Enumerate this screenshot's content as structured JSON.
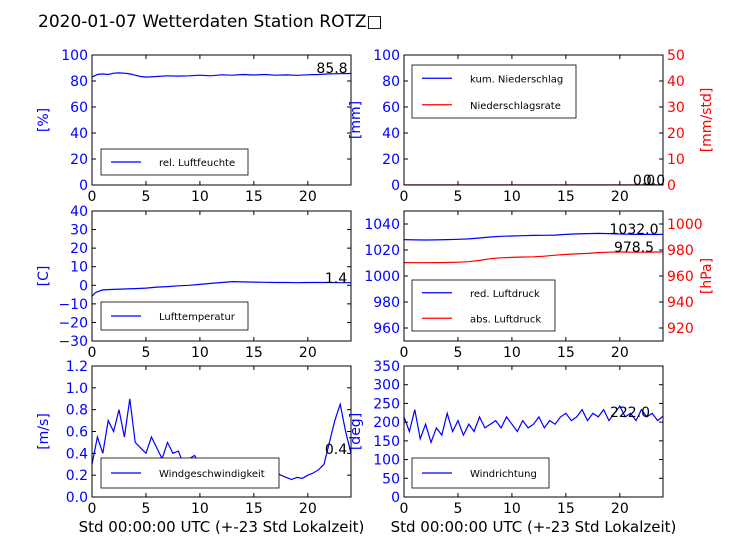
{
  "title": "2020-01-07 Wetterdaten Station ROTZ□",
  "chart_data": [
    {
      "id": "humidity",
      "type": "line",
      "ylabel": "[%]",
      "xlim": [
        0,
        24
      ],
      "ylim": [
        0,
        100
      ],
      "xticks": [
        "0",
        "5",
        "10",
        "15",
        "20"
      ],
      "yticks": [
        "0",
        "20",
        "40",
        "60",
        "80",
        "100"
      ],
      "grid": false,
      "legend_position": "bottom-left",
      "annotation": "85.8",
      "series": [
        {
          "name": "rel. Luftfeuchte",
          "color": "#0000ff",
          "x": [
            0,
            0.5,
            1,
            1.5,
            2,
            2.5,
            3,
            3.5,
            4,
            4.5,
            5,
            6,
            7,
            8,
            9,
            10,
            11,
            12,
            13,
            14,
            15,
            16,
            17,
            18,
            19,
            20,
            21,
            22,
            23,
            24
          ],
          "y": [
            83,
            85,
            85.5,
            85,
            86,
            86.2,
            86,
            85.5,
            84.5,
            83.5,
            83,
            83.5,
            84,
            83.8,
            84,
            84.5,
            84,
            84.8,
            84.5,
            85,
            84.6,
            85,
            84.5,
            84.7,
            84.4,
            84.8,
            85,
            85.5,
            85.6,
            85.8
          ]
        }
      ]
    },
    {
      "id": "precip",
      "type": "line",
      "ylabel": "[mm]",
      "ylabel_right": "[mm/std]",
      "xlim": [
        0,
        24
      ],
      "ylim": [
        0,
        100
      ],
      "ylim_right": [
        0,
        50
      ],
      "xticks": [
        "0",
        "5",
        "10",
        "15",
        "20"
      ],
      "yticks": [
        "0",
        "20",
        "40",
        "60",
        "80",
        "100"
      ],
      "yticks_right": [
        "0",
        "10",
        "20",
        "30",
        "40",
        "50"
      ],
      "grid": false,
      "legend_position": "top-left",
      "annotation": "0.0",
      "annotation2": "0.0",
      "series": [
        {
          "name": "kum. Niederschlag",
          "color": "#0000ff",
          "axis": "left",
          "x": [
            0,
            24
          ],
          "y": [
            0,
            0
          ]
        },
        {
          "name": "Niederschlagsrate",
          "color": "#ff0000",
          "axis": "right",
          "x": [
            0,
            24
          ],
          "y": [
            0,
            0
          ]
        }
      ]
    },
    {
      "id": "temperature",
      "type": "line",
      "ylabel": "[C]",
      "xlim": [
        0,
        24
      ],
      "ylim": [
        -30,
        40
      ],
      "xticks": [
        "0",
        "5",
        "10",
        "15",
        "20"
      ],
      "yticks": [
        "−30",
        "−20",
        "−10",
        "0",
        "10",
        "20",
        "30",
        "40"
      ],
      "grid": false,
      "legend_position": "bottom-left",
      "annotation": "1.4",
      "series": [
        {
          "name": "Lufttemperatur",
          "color": "#0000ff",
          "x": [
            0,
            0.3,
            0.7,
            1,
            2,
            3,
            4,
            5,
            6,
            7,
            8,
            9,
            10,
            11,
            12,
            13,
            14,
            15,
            16,
            17,
            18,
            19,
            20,
            21,
            22,
            23,
            24
          ],
          "y": [
            -6,
            -4,
            -3,
            -2.5,
            -2.2,
            -2,
            -1.8,
            -1.5,
            -1,
            -0.7,
            -0.3,
            0,
            0.5,
            1,
            1.5,
            2,
            1.8,
            1.7,
            1.6,
            1.5,
            1.5,
            1.4,
            1.5,
            1.5,
            1.5,
            1.4,
            1.4
          ]
        }
      ]
    },
    {
      "id": "pressure",
      "type": "line",
      "ylabel_right": "[hPa]",
      "xlim": [
        0,
        24
      ],
      "ylim": [
        950,
        1050
      ],
      "ylim_right": [
        910,
        1010
      ],
      "xticks": [
        "0",
        "5",
        "10",
        "15",
        "20"
      ],
      "yticks": [
        "960",
        "980",
        "1000",
        "1020",
        "1040"
      ],
      "yticks_right": [
        "920",
        "940",
        "960",
        "980",
        "1000"
      ],
      "grid": false,
      "legend_position": "bottom-left",
      "annotation": "1032.0",
      "annotation2": "978.5",
      "series": [
        {
          "name": "red. Luftdruck",
          "color": "#0000ff",
          "axis": "left",
          "x": [
            0,
            1,
            2,
            3,
            4,
            5,
            6,
            7,
            8,
            9,
            10,
            11,
            12,
            13,
            14,
            15,
            16,
            17,
            18,
            19,
            20,
            21,
            22,
            23,
            24
          ],
          "y": [
            1028,
            1027.8,
            1027.7,
            1027.8,
            1028,
            1028.2,
            1028.5,
            1029.2,
            1030,
            1030.5,
            1030.8,
            1031,
            1031.2,
            1031.3,
            1031.5,
            1032,
            1032.4,
            1032.6,
            1032.8,
            1032.6,
            1032.3,
            1032.1,
            1032,
            1032,
            1032
          ]
        },
        {
          "name": "abs. Luftdruck",
          "color": "#ff0000",
          "axis": "right",
          "x": [
            0,
            1,
            2,
            3,
            4,
            5,
            6,
            7,
            8,
            9,
            10,
            11,
            12,
            13,
            14,
            15,
            16,
            17,
            18,
            19,
            20,
            21,
            22,
            23,
            24
          ],
          "y": [
            970.3,
            970.2,
            970.2,
            970.3,
            970.4,
            970.6,
            971,
            972,
            973.3,
            974,
            974.3,
            974.6,
            974.8,
            975.2,
            976,
            976.6,
            977,
            977.4,
            978,
            978.3,
            978.5,
            978.3,
            978.3,
            978.4,
            978.5
          ]
        }
      ]
    },
    {
      "id": "windspeed",
      "type": "line",
      "ylabel": "[m/s]",
      "xlabel": "Std 00:00:00 UTC (+-23 Std Lokalzeit)",
      "xlim": [
        0,
        24
      ],
      "ylim": [
        0,
        1.2
      ],
      "xticks": [
        "0",
        "5",
        "10",
        "15",
        "20"
      ],
      "yticks": [
        "0.0",
        "0.2",
        "0.4",
        "0.6",
        "0.8",
        "1.0",
        "1.2"
      ],
      "grid": false,
      "legend_position": "bottom-left",
      "annotation": "0.4",
      "series": [
        {
          "name": "Windgeschwindigkeit",
          "color": "#0000ff",
          "x": [
            0,
            0.5,
            1,
            1.5,
            2,
            2.5,
            3,
            3.5,
            4,
            4.5,
            5,
            5.5,
            6,
            6.5,
            7,
            7.5,
            8,
            8.5,
            9,
            9.5,
            10,
            10.5,
            11,
            11.5,
            12,
            12.5,
            13,
            13.5,
            14,
            14.5,
            15,
            15.5,
            16,
            16.5,
            17,
            17.5,
            18,
            18.5,
            19,
            19.5,
            20,
            20.5,
            21,
            21.5,
            22,
            22.5,
            23,
            23.5,
            24
          ],
          "y": [
            0.3,
            0.55,
            0.4,
            0.7,
            0.6,
            0.8,
            0.55,
            0.9,
            0.5,
            0.45,
            0.4,
            0.55,
            0.45,
            0.35,
            0.5,
            0.4,
            0.42,
            0.3,
            0.35,
            0.38,
            0.3,
            0.32,
            0.35,
            0.28,
            0.3,
            0.27,
            0.26,
            0.28,
            0.25,
            0.27,
            0.24,
            0.26,
            0.25,
            0.22,
            0.23,
            0.2,
            0.18,
            0.16,
            0.18,
            0.17,
            0.2,
            0.22,
            0.25,
            0.3,
            0.5,
            0.7,
            0.85,
            0.6,
            0.4
          ]
        }
      ]
    },
    {
      "id": "winddir",
      "type": "line",
      "ylabel": "[deg]",
      "xlabel": "Std 00:00:00 UTC (+-23 Std Lokalzeit)",
      "xlim": [
        0,
        24
      ],
      "ylim": [
        0,
        360
      ],
      "xticks": [
        "0",
        "5",
        "10",
        "15",
        "20"
      ],
      "yticks": [
        "0",
        "50",
        "100",
        "150",
        "200",
        "250",
        "300",
        "350"
      ],
      "grid": false,
      "legend_position": "bottom-left",
      "annotation": "222.0",
      "series": [
        {
          "name": "Windrichtung",
          "color": "#0000ff",
          "x": [
            0,
            0.5,
            1,
            1.5,
            2,
            2.5,
            3,
            3.5,
            4,
            4.5,
            5,
            5.5,
            6,
            6.5,
            7,
            7.5,
            8,
            8.5,
            9,
            9.5,
            10,
            10.5,
            11,
            11.5,
            12,
            12.5,
            13,
            13.5,
            14,
            14.5,
            15,
            15.5,
            16,
            16.5,
            17,
            17.5,
            18,
            18.5,
            19,
            19.5,
            20,
            20.5,
            21,
            21.5,
            22,
            22.5,
            23,
            23.5,
            24
          ],
          "y": [
            220,
            180,
            240,
            160,
            200,
            150,
            190,
            170,
            230,
            180,
            210,
            170,
            200,
            180,
            220,
            190,
            200,
            210,
            190,
            220,
            200,
            180,
            210,
            190,
            200,
            220,
            190,
            210,
            200,
            220,
            230,
            210,
            220,
            240,
            210,
            230,
            220,
            240,
            210,
            230,
            250,
            220,
            230,
            210,
            240,
            220,
            230,
            210,
            222
          ]
        }
      ]
    }
  ]
}
